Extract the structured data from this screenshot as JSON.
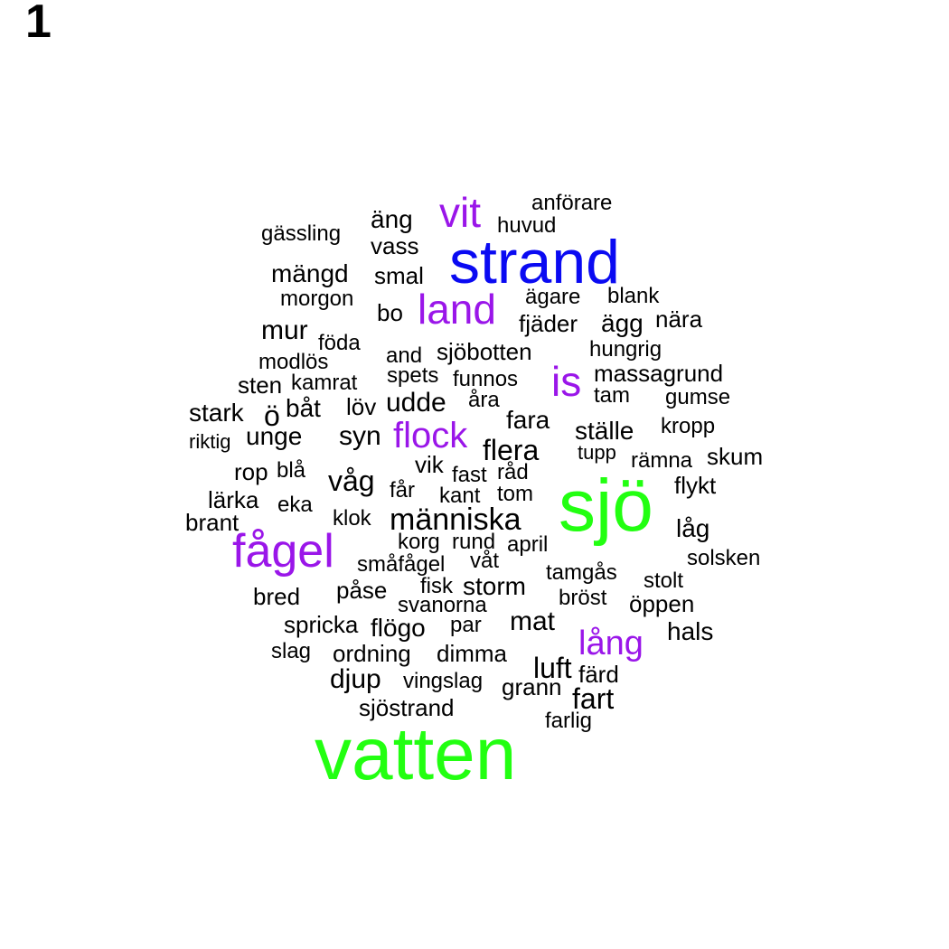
{
  "panel_label": "1",
  "colors": {
    "black": "#000000",
    "purple": "#9a16e9",
    "blue": "#0a0af2",
    "green": "#22ff11"
  },
  "words": [
    {
      "text": "vatten",
      "color": "green"
    },
    {
      "text": "sjö",
      "color": "green"
    },
    {
      "text": "strand",
      "color": "blue"
    },
    {
      "text": "fågel",
      "color": "purple"
    },
    {
      "text": "land",
      "color": "purple"
    },
    {
      "text": "vit",
      "color": "purple"
    },
    {
      "text": "is",
      "color": "purple"
    },
    {
      "text": "flock",
      "color": "purple"
    },
    {
      "text": "lång",
      "color": "purple"
    },
    {
      "text": "människa",
      "color": "black"
    },
    {
      "text": "anförare",
      "color": "black"
    },
    {
      "text": "huvud",
      "color": "black"
    },
    {
      "text": "äng",
      "color": "black"
    },
    {
      "text": "vass",
      "color": "black"
    },
    {
      "text": "gässling",
      "color": "black"
    },
    {
      "text": "mängd",
      "color": "black"
    },
    {
      "text": "smal",
      "color": "black"
    },
    {
      "text": "morgon",
      "color": "black"
    },
    {
      "text": "bo",
      "color": "black"
    },
    {
      "text": "ägare",
      "color": "black"
    },
    {
      "text": "blank",
      "color": "black"
    },
    {
      "text": "fjäder",
      "color": "black"
    },
    {
      "text": "ägg",
      "color": "black"
    },
    {
      "text": "nära",
      "color": "black"
    },
    {
      "text": "mur",
      "color": "black"
    },
    {
      "text": "föda",
      "color": "black"
    },
    {
      "text": "and",
      "color": "black"
    },
    {
      "text": "sjöbotten",
      "color": "black"
    },
    {
      "text": "hungrig",
      "color": "black"
    },
    {
      "text": "modlös",
      "color": "black"
    },
    {
      "text": "spets",
      "color": "black"
    },
    {
      "text": "funnos",
      "color": "black"
    },
    {
      "text": "massagrund",
      "color": "black"
    },
    {
      "text": "sten",
      "color": "black"
    },
    {
      "text": "kamrat",
      "color": "black"
    },
    {
      "text": "tam",
      "color": "black"
    },
    {
      "text": "gumse",
      "color": "black"
    },
    {
      "text": "löv",
      "color": "black"
    },
    {
      "text": "udde",
      "color": "black"
    },
    {
      "text": "åra",
      "color": "black"
    },
    {
      "text": "stark",
      "color": "black"
    },
    {
      "text": "ö",
      "color": "black"
    },
    {
      "text": "båt",
      "color": "black"
    },
    {
      "text": "fara",
      "color": "black"
    },
    {
      "text": "kropp",
      "color": "black"
    },
    {
      "text": "riktig",
      "color": "black"
    },
    {
      "text": "unge",
      "color": "black"
    },
    {
      "text": "syn",
      "color": "black"
    },
    {
      "text": "ställe",
      "color": "black"
    },
    {
      "text": "flera",
      "color": "black"
    },
    {
      "text": "tupp",
      "color": "black"
    },
    {
      "text": "rämna",
      "color": "black"
    },
    {
      "text": "skum",
      "color": "black"
    },
    {
      "text": "vik",
      "color": "black"
    },
    {
      "text": "rop",
      "color": "black"
    },
    {
      "text": "blå",
      "color": "black"
    },
    {
      "text": "våg",
      "color": "black"
    },
    {
      "text": "fast",
      "color": "black"
    },
    {
      "text": "råd",
      "color": "black"
    },
    {
      "text": "flykt",
      "color": "black"
    },
    {
      "text": "får",
      "color": "black"
    },
    {
      "text": "kant",
      "color": "black"
    },
    {
      "text": "tom",
      "color": "black"
    },
    {
      "text": "lärka",
      "color": "black"
    },
    {
      "text": "eka",
      "color": "black"
    },
    {
      "text": "brant",
      "color": "black"
    },
    {
      "text": "klok",
      "color": "black"
    },
    {
      "text": "låg",
      "color": "black"
    },
    {
      "text": "korg",
      "color": "black"
    },
    {
      "text": "rund",
      "color": "black"
    },
    {
      "text": "april",
      "color": "black"
    },
    {
      "text": "våt",
      "color": "black"
    },
    {
      "text": "solsken",
      "color": "black"
    },
    {
      "text": "småfågel",
      "color": "black"
    },
    {
      "text": "tamgås",
      "color": "black"
    },
    {
      "text": "stolt",
      "color": "black"
    },
    {
      "text": "fisk",
      "color": "black"
    },
    {
      "text": "storm",
      "color": "black"
    },
    {
      "text": "påse",
      "color": "black"
    },
    {
      "text": "bred",
      "color": "black"
    },
    {
      "text": "bröst",
      "color": "black"
    },
    {
      "text": "öppen",
      "color": "black"
    },
    {
      "text": "svanorna",
      "color": "black"
    },
    {
      "text": "mat",
      "color": "black"
    },
    {
      "text": "spricka",
      "color": "black"
    },
    {
      "text": "flögo",
      "color": "black"
    },
    {
      "text": "par",
      "color": "black"
    },
    {
      "text": "hals",
      "color": "black"
    },
    {
      "text": "slag",
      "color": "black"
    },
    {
      "text": "ordning",
      "color": "black"
    },
    {
      "text": "dimma",
      "color": "black"
    },
    {
      "text": "luft",
      "color": "black"
    },
    {
      "text": "färd",
      "color": "black"
    },
    {
      "text": "djup",
      "color": "black"
    },
    {
      "text": "vingslag",
      "color": "black"
    },
    {
      "text": "grann",
      "color": "black"
    },
    {
      "text": "fart",
      "color": "black"
    },
    {
      "text": "sjöstrand",
      "color": "black"
    },
    {
      "text": "farlig",
      "color": "black"
    }
  ]
}
